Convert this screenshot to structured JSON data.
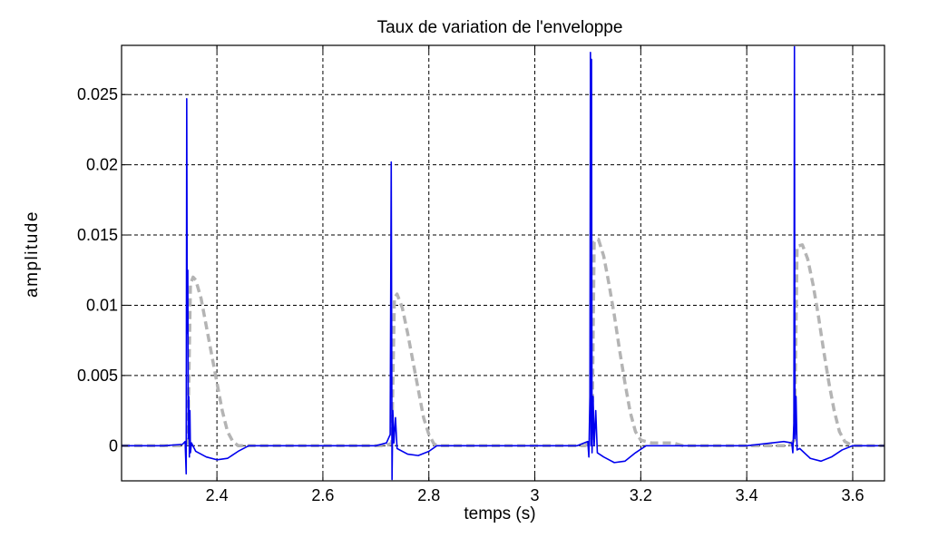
{
  "chart_data": {
    "type": "line",
    "title": "Taux de variation de l'enveloppe",
    "xlabel": "temps (s)",
    "ylabel": "amplitude",
    "xlim": [
      2.22,
      3.66
    ],
    "ylim": [
      -0.0025,
      0.0285
    ],
    "x_ticks": [
      2.4,
      2.6,
      2.8,
      3,
      3.2,
      3.4,
      3.6
    ],
    "x_tick_labels": [
      "2.4",
      "2.6",
      "2.8",
      "3",
      "3.2",
      "3.4",
      "3.6"
    ],
    "y_ticks": [
      0,
      0.005,
      0.01,
      0.015,
      0.02,
      0.025
    ],
    "y_tick_labels": [
      "0",
      "0.005",
      "0.01",
      "0.015",
      "0.02",
      "0.025"
    ],
    "grid": true,
    "series": [
      {
        "style": "solid",
        "color": "#0000ee",
        "points": [
          [
            2.22,
            0.0
          ],
          [
            2.3,
            0.0
          ],
          [
            2.335,
            0.0001
          ],
          [
            2.34,
            0.0003
          ],
          [
            2.342,
            -0.002
          ],
          [
            2.343,
            0.0247
          ],
          [
            2.344,
            0.008
          ],
          [
            2.345,
            0.0125
          ],
          [
            2.346,
            0.0005
          ],
          [
            2.347,
            0.0035
          ],
          [
            2.348,
            -0.0008
          ],
          [
            2.349,
            0.0025
          ],
          [
            2.35,
            -0.0005
          ],
          [
            2.352,
            0.0002
          ],
          [
            2.36,
            -0.0004
          ],
          [
            2.38,
            -0.0008
          ],
          [
            2.4,
            -0.001
          ],
          [
            2.42,
            -0.0009
          ],
          [
            2.44,
            -0.0004
          ],
          [
            2.46,
            0.0
          ],
          [
            2.5,
            0.0
          ],
          [
            2.6,
            0.0
          ],
          [
            2.7,
            0.0
          ],
          [
            2.72,
            0.0002
          ],
          [
            2.727,
            0.0008
          ],
          [
            2.729,
            0.0202
          ],
          [
            2.7305,
            -0.0024
          ],
          [
            2.732,
            0.0025
          ],
          [
            2.734,
            0.0002
          ],
          [
            2.737,
            0.002
          ],
          [
            2.74,
            -0.0002
          ],
          [
            2.76,
            -0.0006
          ],
          [
            2.78,
            -0.0007
          ],
          [
            2.8,
            -0.0004
          ],
          [
            2.815,
            0.0
          ],
          [
            2.9,
            0.0
          ],
          [
            3.0,
            0.0
          ],
          [
            3.08,
            0.0
          ],
          [
            3.1,
            0.0003
          ],
          [
            3.102,
            -0.0008
          ],
          [
            3.104,
            0.0035
          ],
          [
            3.105,
            0.028
          ],
          [
            3.106,
            0.0
          ],
          [
            3.107,
            0.0275
          ],
          [
            3.108,
            -0.0005
          ],
          [
            3.11,
            0.0035
          ],
          [
            3.112,
            0.0
          ],
          [
            3.115,
            0.0025
          ],
          [
            3.118,
            -0.0005
          ],
          [
            3.13,
            -0.0008
          ],
          [
            3.15,
            -0.0012
          ],
          [
            3.17,
            -0.0011
          ],
          [
            3.19,
            -0.0005
          ],
          [
            3.21,
            0.0
          ],
          [
            3.3,
            0.0
          ],
          [
            3.4,
            0.0
          ],
          [
            3.47,
            0.0003
          ],
          [
            3.485,
            0.0002
          ],
          [
            3.487,
            -0.0005
          ],
          [
            3.489,
            0.0017
          ],
          [
            3.49,
            0.0284
          ],
          [
            3.491,
            0.0005
          ],
          [
            3.493,
            0.0035
          ],
          [
            3.495,
            -0.0003
          ],
          [
            3.5,
            -0.0002
          ],
          [
            3.52,
            -0.0009
          ],
          [
            3.54,
            -0.0011
          ],
          [
            3.56,
            -0.0008
          ],
          [
            3.58,
            -0.0003
          ],
          [
            3.6,
            0.0
          ],
          [
            3.66,
            0.0
          ]
        ]
      },
      {
        "style": "dashed",
        "color": "#b4b4b4",
        "points": [
          [
            2.22,
            0.0
          ],
          [
            2.33,
            0.0
          ],
          [
            2.345,
            0.0002
          ],
          [
            2.35,
            0.0115
          ],
          [
            2.355,
            0.012
          ],
          [
            2.36,
            0.0118
          ],
          [
            2.37,
            0.0105
          ],
          [
            2.38,
            0.0085
          ],
          [
            2.39,
            0.0065
          ],
          [
            2.4,
            0.0045
          ],
          [
            2.41,
            0.0025
          ],
          [
            2.42,
            0.001
          ],
          [
            2.43,
            0.0003
          ],
          [
            2.44,
            0.0
          ],
          [
            2.72,
            0.0
          ],
          [
            2.73,
            0.0002
          ],
          [
            2.735,
            0.0105
          ],
          [
            2.74,
            0.0108
          ],
          [
            2.75,
            0.0098
          ],
          [
            2.76,
            0.008
          ],
          [
            2.77,
            0.006
          ],
          [
            2.78,
            0.004
          ],
          [
            2.79,
            0.002
          ],
          [
            2.8,
            0.0008
          ],
          [
            2.81,
            0.0001
          ],
          [
            2.82,
            0.0
          ],
          [
            3.095,
            0.0
          ],
          [
            3.108,
            0.0005
          ],
          [
            3.112,
            0.0145
          ],
          [
            3.12,
            0.0147
          ],
          [
            3.13,
            0.0135
          ],
          [
            3.14,
            0.0115
          ],
          [
            3.15,
            0.0093
          ],
          [
            3.16,
            0.0068
          ],
          [
            3.17,
            0.0045
          ],
          [
            3.18,
            0.0024
          ],
          [
            3.19,
            0.001
          ],
          [
            3.2,
            0.0004
          ],
          [
            3.22,
            0.0002
          ],
          [
            3.26,
            0.0002
          ],
          [
            3.28,
            0.0
          ],
          [
            3.48,
            0.0
          ],
          [
            3.49,
            0.0004
          ],
          [
            3.495,
            0.0142
          ],
          [
            3.505,
            0.0143
          ],
          [
            3.515,
            0.0133
          ],
          [
            3.525,
            0.0115
          ],
          [
            3.535,
            0.0093
          ],
          [
            3.545,
            0.0068
          ],
          [
            3.555,
            0.0045
          ],
          [
            3.565,
            0.0025
          ],
          [
            3.575,
            0.001
          ],
          [
            3.585,
            0.0003
          ],
          [
            3.6,
            0.0
          ],
          [
            3.66,
            0.0
          ]
        ]
      }
    ]
  }
}
